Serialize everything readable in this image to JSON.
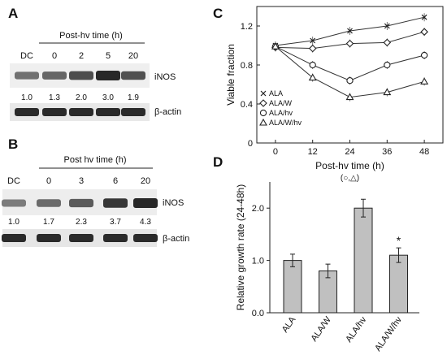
{
  "panelA": {
    "letter": "A",
    "header": "Post-hv time (h)",
    "lanes": [
      "DC",
      "0",
      "2",
      "5",
      "20"
    ],
    "band_label": "iNOS",
    "ratios": [
      "1.0",
      "1.3",
      "2.0",
      "3.0",
      "1.9"
    ],
    "intensity": [
      1.0,
      1.3,
      2.0,
      3.0,
      1.9
    ],
    "loading_label": "β-actin"
  },
  "panelB": {
    "letter": "B",
    "header": "Post hv time (h)",
    "lanes": [
      "DC",
      "0",
      "3",
      "6",
      "20"
    ],
    "band_label": "iNOS",
    "ratios": [
      "1.0",
      "1.7",
      "2.3",
      "3.7",
      "4.3"
    ],
    "intensity": [
      1.0,
      1.7,
      2.3,
      3.7,
      4.3
    ],
    "loading_label": "β-actin"
  },
  "chart_data": [
    {
      "panel": "C",
      "type": "line",
      "xlabel": "Post-hv time (h)",
      "xlabel_sub": "(○,△)",
      "ylabel": "Viable fraction",
      "x": [
        0,
        12,
        24,
        36,
        48
      ],
      "xlim": [
        -6,
        54
      ],
      "ylim": [
        0,
        1.4
      ],
      "xticks": [
        "0",
        "12",
        "24",
        "36",
        "48"
      ],
      "yticks": [
        "0",
        "0.4",
        "0.8",
        "1.2"
      ],
      "ytick_values": [
        0,
        0.4,
        0.8,
        1.2
      ],
      "legend_position": "bottom-left",
      "series": [
        {
          "name": "ALA",
          "marker": "x",
          "values": [
            1.0,
            1.05,
            1.15,
            1.2,
            1.29
          ]
        },
        {
          "name": "ALA/W",
          "marker": "diamond",
          "values": [
            0.98,
            0.97,
            1.02,
            1.03,
            1.14
          ]
        },
        {
          "name": "ALA/hv",
          "marker": "circle",
          "values": [
            0.99,
            0.8,
            0.64,
            0.8,
            0.9
          ]
        },
        {
          "name": "ALA/W/hv",
          "marker": "triangle",
          "values": [
            0.99,
            0.67,
            0.47,
            0.52,
            0.63
          ]
        }
      ]
    },
    {
      "panel": "D",
      "type": "bar",
      "ylabel": "Relative growth rate (24-48h)",
      "categories": [
        "ALA",
        "ALA/W",
        "ALA/hv",
        "ALA/W/hv"
      ],
      "values": [
        1.0,
        0.8,
        2.0,
        1.1
      ],
      "errors": [
        0.12,
        0.13,
        0.17,
        0.14
      ],
      "ylim": [
        0,
        2.5
      ],
      "yticks": [
        "0.0",
        "1.0",
        "2.0"
      ],
      "ytick_values": [
        0,
        1.0,
        2.0
      ],
      "annotation": "*",
      "annotation_index": 3,
      "bar_color": "#c0c0c0"
    }
  ],
  "panel_letters": {
    "c": "C",
    "d": "D"
  }
}
